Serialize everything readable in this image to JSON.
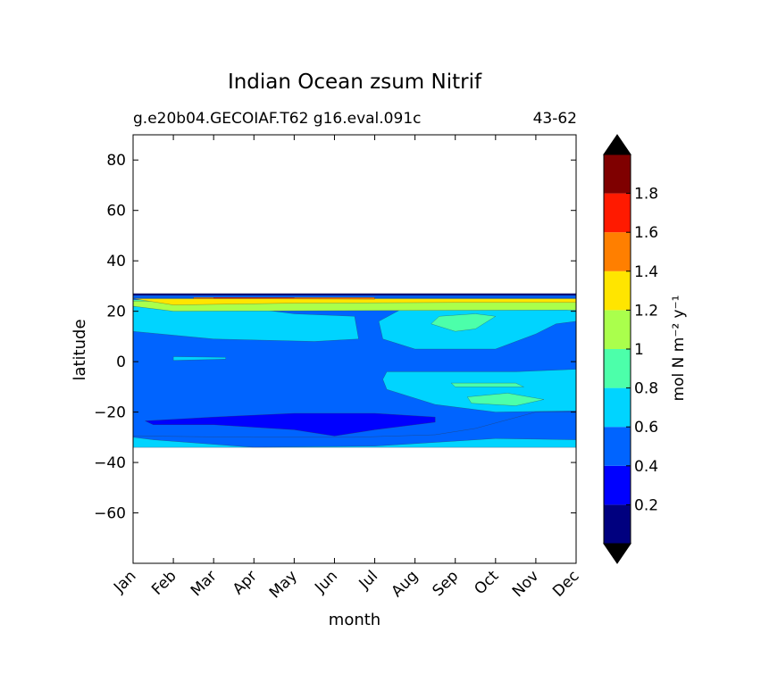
{
  "chart_data": {
    "type": "contour",
    "title": "Indian Ocean zsum Nitrif",
    "subtitle_left": "g.e20b04.GECOIAF.T62 g16.eval.091c",
    "subtitle_right": "43-62",
    "xlabel": "month",
    "ylabel": "latitude",
    "x_categories": [
      "Jan",
      "Feb",
      "Mar",
      "Apr",
      "May",
      "Jun",
      "Jul",
      "Aug",
      "Sep",
      "Oct",
      "Nov",
      "Dec"
    ],
    "x_range": [
      1,
      12
    ],
    "y_range": [
      -80,
      90
    ],
    "y_ticks": [
      "80",
      "60",
      "40",
      "20",
      "0",
      "−20",
      "−40",
      "−60"
    ],
    "y_tick_values": [
      80,
      60,
      40,
      20,
      0,
      -20,
      -40,
      -60
    ],
    "data_lat_range": [
      -34,
      27
    ],
    "colorbar": {
      "label": "mol N m⁻² y⁻¹",
      "tick_labels": [
        "0.2",
        "0.4",
        "0.6",
        "0.8",
        "1",
        "1.2",
        "1.4",
        "1.6",
        "1.8"
      ],
      "levels": [
        0,
        0.2,
        0.4,
        0.6,
        0.8,
        1.0,
        1.2,
        1.4,
        1.6,
        1.8,
        2.0
      ],
      "colors": [
        "#00007f",
        "#0000ff",
        "#0064ff",
        "#00d4ff",
        "#4cffaa",
        "#aaff4c",
        "#ffe500",
        "#ff7f00",
        "#ff1a00",
        "#7f0000"
      ],
      "extend": "both",
      "under_color": "#000000",
      "over_color": "#000000"
    },
    "regions": [
      {
        "name": "band-below-minus30",
        "level": 0.6,
        "points": [
          [
            1,
            -34
          ],
          [
            12,
            -34
          ],
          [
            12,
            -31
          ],
          [
            10,
            -30.5
          ],
          [
            9,
            -31.5
          ],
          [
            7,
            -33.5
          ],
          [
            4,
            -34
          ],
          [
            1.5,
            -31
          ],
          [
            1,
            -30
          ]
        ]
      },
      {
        "name": "main-0.4-area",
        "level": 0.4,
        "points": [
          [
            1,
            -29.5
          ],
          [
            4,
            -30
          ],
          [
            6.5,
            -30
          ],
          [
            8.5,
            -29
          ],
          [
            9.5,
            -26.5
          ],
          [
            11,
            -20
          ],
          [
            12,
            -20
          ],
          [
            12,
            22
          ],
          [
            1,
            22
          ]
        ]
      },
      {
        "name": "west-north-0.6",
        "level": 0.6,
        "points": [
          [
            1,
            22
          ],
          [
            4,
            21
          ],
          [
            5,
            19
          ],
          [
            6.5,
            18
          ],
          [
            6.6,
            9
          ],
          [
            5.5,
            8
          ],
          [
            3,
            9
          ],
          [
            1,
            12
          ]
        ]
      },
      {
        "name": "east-north-0.6",
        "level": 0.6,
        "points": [
          [
            7.8,
            22
          ],
          [
            12,
            22
          ],
          [
            12,
            16
          ],
          [
            11.5,
            15
          ],
          [
            11,
            11
          ],
          [
            10,
            5
          ],
          [
            8,
            5
          ],
          [
            7.2,
            9
          ],
          [
            7.1,
            16
          ]
        ]
      },
      {
        "name": "east-south-0.6",
        "level": 0.6,
        "points": [
          [
            7.3,
            -4
          ],
          [
            8.5,
            -4
          ],
          [
            10.5,
            -4
          ],
          [
            12,
            -3
          ],
          [
            12,
            -19.5
          ],
          [
            10,
            -20
          ],
          [
            8.5,
            -17
          ],
          [
            7.3,
            -11
          ],
          [
            7.2,
            -7
          ]
        ]
      },
      {
        "name": "blob-0.6-mar",
        "level": 0.6,
        "points": [
          [
            2,
            0.5
          ],
          [
            3.3,
            1
          ],
          [
            3.3,
            1.7
          ],
          [
            2,
            2
          ]
        ]
      },
      {
        "name": "south-0.8-blob",
        "level": 0.8,
        "points": [
          [
            9.3,
            -14
          ],
          [
            10.3,
            -12.5
          ],
          [
            11.2,
            -15
          ],
          [
            10.5,
            -17.5
          ],
          [
            9.4,
            -16.5
          ]
        ]
      },
      {
        "name": "south-0.8-blob-2",
        "level": 0.8,
        "points": [
          [
            8.9,
            -8.5
          ],
          [
            10.5,
            -8.5
          ],
          [
            10.7,
            -10
          ],
          [
            9,
            -10
          ]
        ]
      },
      {
        "name": "north-0.8-blob",
        "level": 0.8,
        "points": [
          [
            8.6,
            18
          ],
          [
            9.5,
            19
          ],
          [
            10,
            18
          ],
          [
            9.5,
            13
          ],
          [
            9,
            12
          ],
          [
            8.4,
            15
          ]
        ]
      },
      {
        "name": "minimum-0.2-band",
        "level": 0.2,
        "points": [
          [
            1.3,
            -23.5
          ],
          [
            3,
            -22
          ],
          [
            5,
            -20.5
          ],
          [
            7,
            -20.5
          ],
          [
            8.5,
            -22
          ],
          [
            8.5,
            -24
          ],
          [
            7,
            -27
          ],
          [
            6,
            -29.5
          ],
          [
            5,
            -27
          ],
          [
            3,
            -25
          ],
          [
            1.5,
            -25
          ]
        ]
      },
      {
        "name": "top-0.6-band",
        "level": 0.6,
        "points": [
          [
            1,
            22
          ],
          [
            12,
            22
          ],
          [
            12,
            24
          ],
          [
            1,
            24
          ]
        ]
      },
      {
        "name": "top-0.8-band",
        "level": 0.8,
        "points": [
          [
            1,
            22.5
          ],
          [
            12,
            22.5
          ],
          [
            12,
            24.5
          ],
          [
            1,
            24.5
          ]
        ]
      },
      {
        "name": "top-1.0-band",
        "level": 1.0,
        "points": [
          [
            2,
            20
          ],
          [
            12,
            20.5
          ],
          [
            12,
            23.8
          ],
          [
            1,
            24
          ],
          [
            1,
            22
          ]
        ]
      },
      {
        "name": "top-1.2-band",
        "level": 1.2,
        "points": [
          [
            2,
            22.5
          ],
          [
            5,
            23.2
          ],
          [
            9,
            23.5
          ],
          [
            12,
            23.5
          ],
          [
            12,
            25
          ],
          [
            1,
            25
          ]
        ]
      },
      {
        "name": "top-1.4-patch",
        "level": 1.4,
        "points": [
          [
            2.5,
            25
          ],
          [
            7,
            24.8
          ],
          [
            7,
            25.5
          ],
          [
            2.5,
            25.5
          ]
        ]
      },
      {
        "name": "top-1.6-patch",
        "level": 1.6,
        "points": [
          [
            3,
            25.2
          ],
          [
            5,
            25.3
          ],
          [
            5,
            25.7
          ],
          [
            3,
            25.7
          ]
        ]
      },
      {
        "name": "top-edge",
        "level": 0.4,
        "points": [
          [
            1,
            25.5
          ],
          [
            12,
            25.5
          ],
          [
            12,
            26.5
          ],
          [
            1,
            26.5
          ]
        ]
      },
      {
        "name": "top-edge-dark",
        "level": 0.0,
        "points": [
          [
            1,
            26.3
          ],
          [
            12,
            26.3
          ],
          [
            12,
            27
          ],
          [
            1,
            27
          ]
        ]
      }
    ]
  }
}
